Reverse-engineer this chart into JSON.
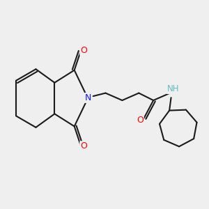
{
  "bg_color": "#efefef",
  "bond_color": "#1a1a1a",
  "bond_width": 1.5,
  "N_color": "#1414ff",
  "O_color": "#ff0000",
  "H_color": "#5cbfbf",
  "font_size": 8.5,
  "fig_size": [
    3.0,
    3.0
  ],
  "dpi": 100,
  "xlim": [
    0,
    10
  ],
  "ylim": [
    0,
    10
  ]
}
